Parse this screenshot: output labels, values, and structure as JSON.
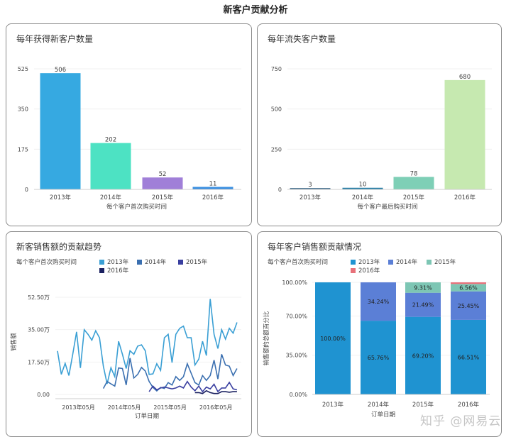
{
  "page_title": "新客户贡献分析",
  "watermark": "知乎 @网易云",
  "chart_data": [
    {
      "type": "bar",
      "title": "每年获得新客户数量",
      "categories": [
        "2013年",
        "2014年",
        "2015年",
        "2016年"
      ],
      "values": [
        506,
        202,
        52,
        11
      ],
      "colors": [
        "#36a9e1",
        "#4de2c3",
        "#a07fd8",
        "#3a8ee0"
      ],
      "xlabel": "每个客户首次购买时间",
      "ylabel": "",
      "ylim": [
        0,
        525
      ],
      "yticks": [
        0,
        175,
        350,
        525
      ],
      "grid": true
    },
    {
      "type": "bar",
      "title": "每年流失客户数量",
      "categories": [
        "2013年",
        "2014年",
        "2015年",
        "2016年"
      ],
      "values": [
        3,
        10,
        78,
        680
      ],
      "colors": [
        "#5a7f9a",
        "#2a7fa6",
        "#7ecfb6",
        "#c6e9b0"
      ],
      "xlabel": "每个客户最后购买时间",
      "ylabel": "",
      "ylim": [
        0,
        750
      ],
      "yticks": [
        0,
        250,
        500,
        750
      ],
      "grid": true
    },
    {
      "type": "line",
      "title": "新客销售额的贡献趋势",
      "legend_title": "每个客户首次购买时间",
      "xlabel": "订单日期",
      "ylabel": "销售额",
      "ylim": [
        0,
        52.5
      ],
      "yticks": [
        "0.00",
        "17.50万",
        "35.00万",
        "52.50万"
      ],
      "ytick_values": [
        0,
        17.5,
        35,
        52.5
      ],
      "xticks": [
        "2013年05月",
        "2014年05月",
        "2015年05月",
        "2016年05月"
      ],
      "x_start": "2013-01",
      "x_end": "2016-12",
      "unit": "万",
      "series": [
        {
          "name": "2013年",
          "color": "#3a9fd4",
          "start": "2013-01",
          "values": [
            23.5,
            10.8,
            16.8,
            10.2,
            21.7,
            33.8,
            14.3,
            35,
            32.5,
            29.3,
            34.4,
            30.6,
            15.3,
            5.7,
            14.4,
            9.6,
            28.7,
            21.7,
            14,
            23.6,
            21.7,
            26.1,
            26.8,
            23.6,
            10.8,
            11.1,
            16.6,
            13,
            30.6,
            32.5,
            17.2,
            32.5,
            35.7,
            36.9,
            30.6,
            30.6,
            15.9,
            19.1,
            28.7,
            21,
            51.6,
            32.5,
            24.8,
            35,
            29.9,
            35.7,
            33.1,
            38.9
          ]
        },
        {
          "name": "2014年",
          "color": "#3a6fb0",
          "start": "2014-01",
          "values": [
            3.2,
            7,
            5.7,
            4.5,
            14.3,
            14,
            5.1,
            19.7,
            8.9,
            10.8,
            14.6,
            12.7,
            7,
            3.8,
            1.9,
            3.8,
            3.2,
            6.4,
            5.1,
            9.6,
            7.6,
            9.6,
            16.6,
            11.5,
            6.4,
            5.1,
            10.2,
            7.6,
            10.2,
            18.5,
            8.3,
            21.7,
            15.9,
            15.3,
            10.2,
            14
          ]
        },
        {
          "name": "2015年",
          "color": "#3a3fa0",
          "start": "2015-01",
          "values": [
            1.5,
            4.5,
            2.5,
            3.5,
            4,
            3.5,
            3,
            3.5,
            4.5,
            3.5,
            7,
            4,
            2,
            4.5,
            1.5,
            4,
            3,
            5.5,
            1.5,
            3.5,
            3.5,
            6.5,
            3,
            2.5
          ]
        },
        {
          "name": "2016年",
          "color": "#1a2060",
          "start": "2016-01",
          "values": [
            1,
            1,
            0.5,
            2,
            1,
            0.5,
            0.5,
            1.5,
            1.5,
            1.2,
            1.5,
            1.5
          ]
        }
      ],
      "grid": true
    },
    {
      "type": "bar",
      "stacked": "percent",
      "title": "每年客户销售额贡献情况",
      "legend_title": "每个客户首次购买时间",
      "xlabel": "订单日期",
      "ylabel": "销售额的总额百分比",
      "ylim": [
        0,
        100
      ],
      "yticks": [
        "0.00%",
        "35.00%",
        "70.00%",
        "100.00%"
      ],
      "ytick_values": [
        0,
        35,
        70,
        100
      ],
      "categories": [
        "2013年",
        "2014年",
        "2015年",
        "2016年"
      ],
      "series": [
        {
          "name": "2013年",
          "color": "#1f93d1",
          "values": [
            100,
            65.76,
            69.2,
            66.51
          ],
          "labels": [
            "100.00%",
            "65.76%",
            "69.20%",
            "66.51%"
          ]
        },
        {
          "name": "2014年",
          "color": "#5b7fd6",
          "values": [
            0,
            34.24,
            21.49,
            25.45
          ],
          "labels": [
            "",
            "34.24%",
            "21.49%",
            "25.45%"
          ]
        },
        {
          "name": "2015年",
          "color": "#7dc6b4",
          "values": [
            0,
            0,
            9.31,
            6.56
          ],
          "labels": [
            "",
            "",
            "9.31%",
            "6.56%"
          ]
        },
        {
          "name": "2016年",
          "color": "#e8717a",
          "values": [
            0,
            0,
            0,
            1.48
          ],
          "labels": [
            "",
            "",
            "",
            ""
          ]
        }
      ],
      "grid": true
    }
  ]
}
